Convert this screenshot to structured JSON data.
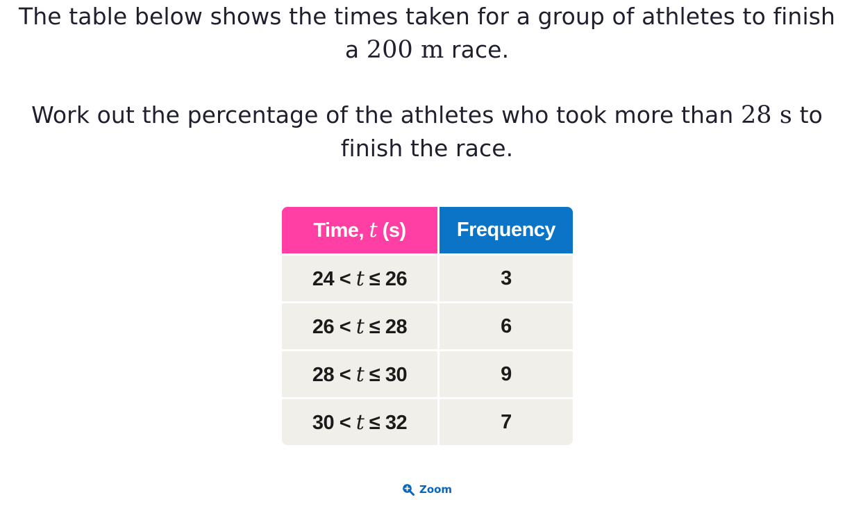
{
  "question": {
    "line1_prefix": "The table below shows the times taken for a group of athletes to finish",
    "line2_prefix": "a ",
    "distance_value": "200",
    "distance_unit": " m",
    "line2_suffix": " race.",
    "line3_prefix": "Work out the percentage of the athletes who took more than ",
    "time_value": "28",
    "time_unit": " s",
    "line3_suffix": " to",
    "line4": "finish the race."
  },
  "table": {
    "header_time_prefix": "Time, ",
    "header_time_var": "t",
    "header_time_unit": " (s)",
    "header_frequency": "Frequency",
    "rows": [
      {
        "lower": "24",
        "var": "t",
        "upper": "26",
        "frequency": "3"
      },
      {
        "lower": "26",
        "var": "t",
        "upper": "28",
        "frequency": "6"
      },
      {
        "lower": "28",
        "var": "t",
        "upper": "30",
        "frequency": "9"
      },
      {
        "lower": "30",
        "var": "t",
        "upper": "32",
        "frequency": "7"
      }
    ],
    "lt_symbol": " < ",
    "le_symbol": " ≤ "
  },
  "zoom": {
    "label": "Zoom",
    "icon": "zoom-in-icon"
  },
  "colors": {
    "time_header": "#ff3fa4",
    "frequency_header": "#0c74c7",
    "cell_background": "#f1efe9",
    "zoom_accent": "#0c66b8"
  }
}
